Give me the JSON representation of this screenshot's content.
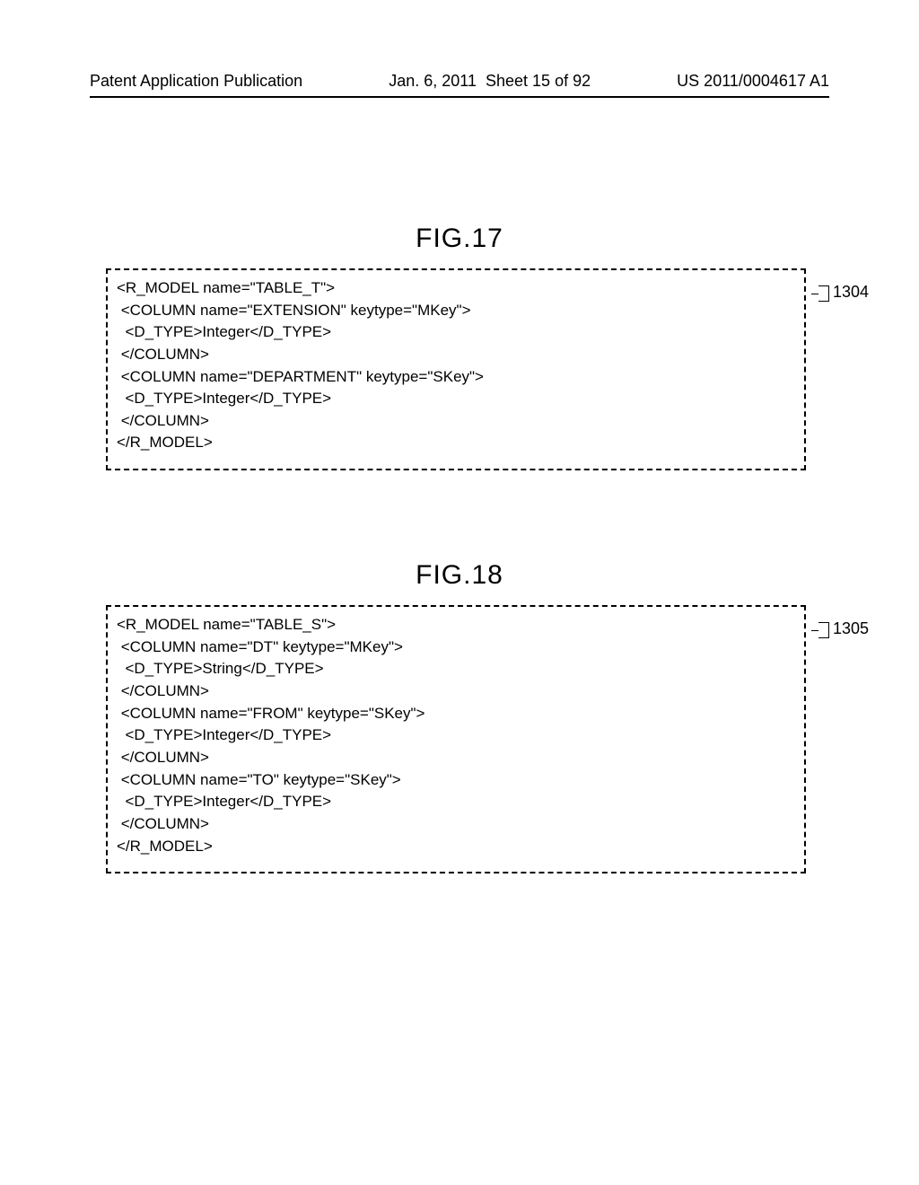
{
  "header": {
    "left": "Patent Application Publication",
    "date": "Jan. 6, 2011",
    "sheet": "Sheet 15 of 92",
    "pubno": "US 2011/0004617 A1"
  },
  "fig17": {
    "title": "FIG.17",
    "ref": "1304",
    "lines": [
      "<R_MODEL name=\"TABLE_T\">",
      " <COLUMN name=\"EXTENSION\" keytype=\"MKey\">",
      "  <D_TYPE>Integer</D_TYPE>",
      " </COLUMN>",
      " <COLUMN name=\"DEPARTMENT\" keytype=\"SKey\">",
      "  <D_TYPE>Integer</D_TYPE>",
      " </COLUMN>",
      "</R_MODEL>"
    ]
  },
  "fig18": {
    "title": "FIG.18",
    "ref": "1305",
    "lines": [
      "<R_MODEL name=\"TABLE_S\">",
      " <COLUMN name=\"DT\" keytype=\"MKey\">",
      "  <D_TYPE>String</D_TYPE>",
      " </COLUMN>",
      " <COLUMN name=\"FROM\" keytype=\"SKey\">",
      "  <D_TYPE>Integer</D_TYPE>",
      " </COLUMN>",
      " <COLUMN name=\"TO\" keytype=\"SKey\">",
      "  <D_TYPE>Integer</D_TYPE>",
      " </COLUMN>",
      "</R_MODEL>"
    ]
  },
  "style": {
    "page_bg": "#ffffff",
    "text_color": "#000000",
    "border_style": "dashed",
    "border_color": "#000000",
    "title_fontsize": 30,
    "code_fontsize": 17,
    "header_fontsize": 18
  }
}
